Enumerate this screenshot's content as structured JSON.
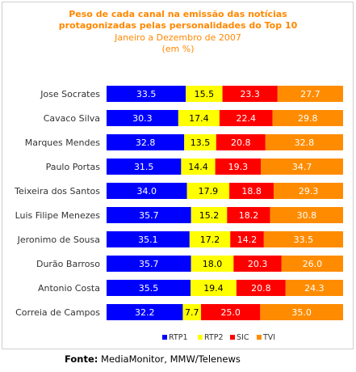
{
  "title_line1": "Peso de cada canal na emissão das notícias",
  "title_line2": "protagonizadas pelas personalidades do Top 10",
  "subtitle_line1": "Janeiro a Dezembro de 2007",
  "subtitle_line2": "(em %)",
  "source_label": "Fonte:",
  "source_text": "MediaMonitor, MMW/Telenews",
  "chart_data": {
    "type": "bar",
    "orientation": "horizontal",
    "stacked": true,
    "title": "Peso de cada canal na emissão das notícias protagonizadas pelas personalidades do Top 10",
    "subtitle": "Janeiro a Dezembro de 2007 (em %)",
    "xlim": [
      0,
      100
    ],
    "grid": false,
    "legend_position": "bottom",
    "categories": [
      "Jose Socrates",
      "Cavaco Silva",
      "Marques Mendes",
      "Paulo Portas",
      "Teixeira dos Santos",
      "Luis Filipe Menezes",
      "Jeronimo de Sousa",
      "Durão Barroso",
      "Antonio Costa",
      "Correia de Campos"
    ],
    "category_labels": [
      "Jose Socrates",
      "Cavaco Silva",
      "Marques Mendes",
      "Paulo Portas",
      "Teixeira dos Santos",
      "Luis Filipe Menezes",
      "Jeronimo de Sousa",
      "Durão Barroso",
      "Antonio Costa",
      "Correia de Campos"
    ],
    "series": [
      {
        "name": "RTP1",
        "color": "#0000ff",
        "text_color": "#ffffff",
        "values": [
          33.5,
          30.3,
          32.8,
          31.5,
          34.0,
          35.7,
          35.1,
          35.7,
          35.5,
          32.2
        ],
        "labels": [
          "33.5",
          "30.3",
          "32.8",
          "31.5",
          "34.0",
          "35.7",
          "35.1",
          "35.7",
          "35.5",
          "32.2"
        ]
      },
      {
        "name": "RTP2",
        "color": "#ffff00",
        "text_color": "#000000",
        "values": [
          15.5,
          17.4,
          13.5,
          14.4,
          17.9,
          15.2,
          17.2,
          18.0,
          19.4,
          7.7
        ],
        "labels": [
          "15.5",
          "17.4",
          "13.5",
          "14.4",
          "17.9",
          "15.2",
          "17.2",
          "18.0",
          "19.4",
          "7.7"
        ]
      },
      {
        "name": "SIC",
        "color": "#ff0000",
        "text_color": "#ffffff",
        "values": [
          23.3,
          22.4,
          20.8,
          19.3,
          18.8,
          18.2,
          14.2,
          20.3,
          20.8,
          25.0
        ],
        "labels": [
          "23.3",
          "22.4",
          "20.8",
          "19.3",
          "18.8",
          "18.2",
          "14.2",
          "20.3",
          "20.8",
          "25.0"
        ]
      },
      {
        "name": "TVI",
        "color": "#ff8c00",
        "text_color": "#ffffff",
        "values": [
          27.7,
          29.8,
          32.8,
          34.7,
          29.3,
          30.8,
          33.5,
          26.0,
          24.3,
          35.0
        ],
        "labels": [
          "27.7",
          "29.8",
          "32.8",
          "34.7",
          "29.3",
          "30.8",
          "33.5",
          "26.0",
          "24.3",
          "35.0"
        ]
      }
    ]
  }
}
